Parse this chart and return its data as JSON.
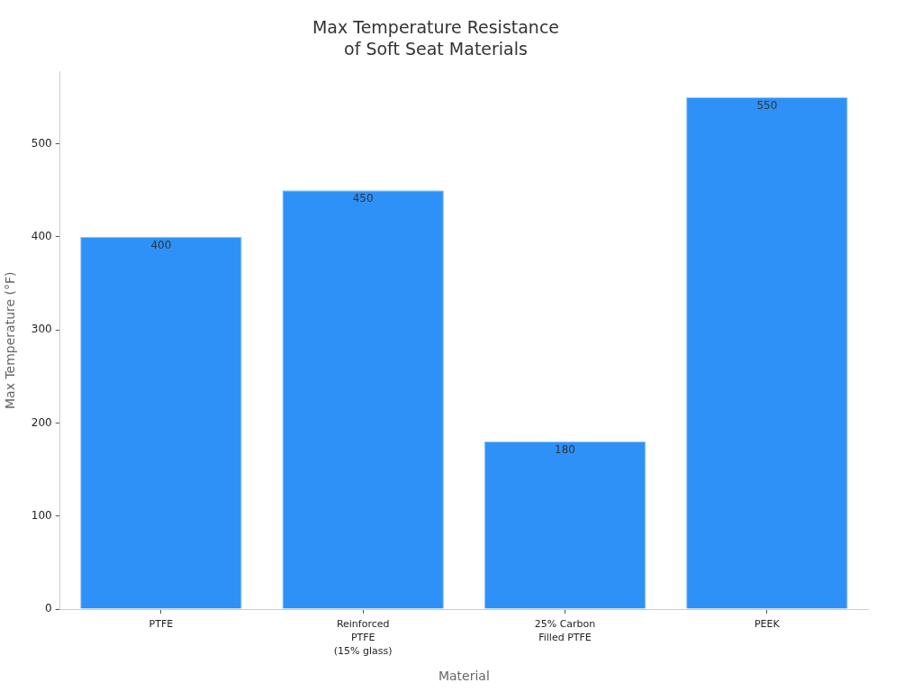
{
  "chart_data": {
    "type": "bar",
    "title": "Max Temperature Resistance of Soft Seat Materials",
    "xlabel": "Material",
    "ylabel": "Max Temperature (°F)",
    "categories": [
      "PTFE",
      "Reinforced PTFE (15% glass)",
      "25% Carbon Filled PTFE",
      "PEEK"
    ],
    "values": [
      400,
      450,
      180,
      550
    ],
    "color": "#2e91f8",
    "ylim": [
      0,
      577.5
    ],
    "yticks": [
      0,
      100,
      200,
      300,
      400,
      500
    ],
    "data_labels": true
  }
}
